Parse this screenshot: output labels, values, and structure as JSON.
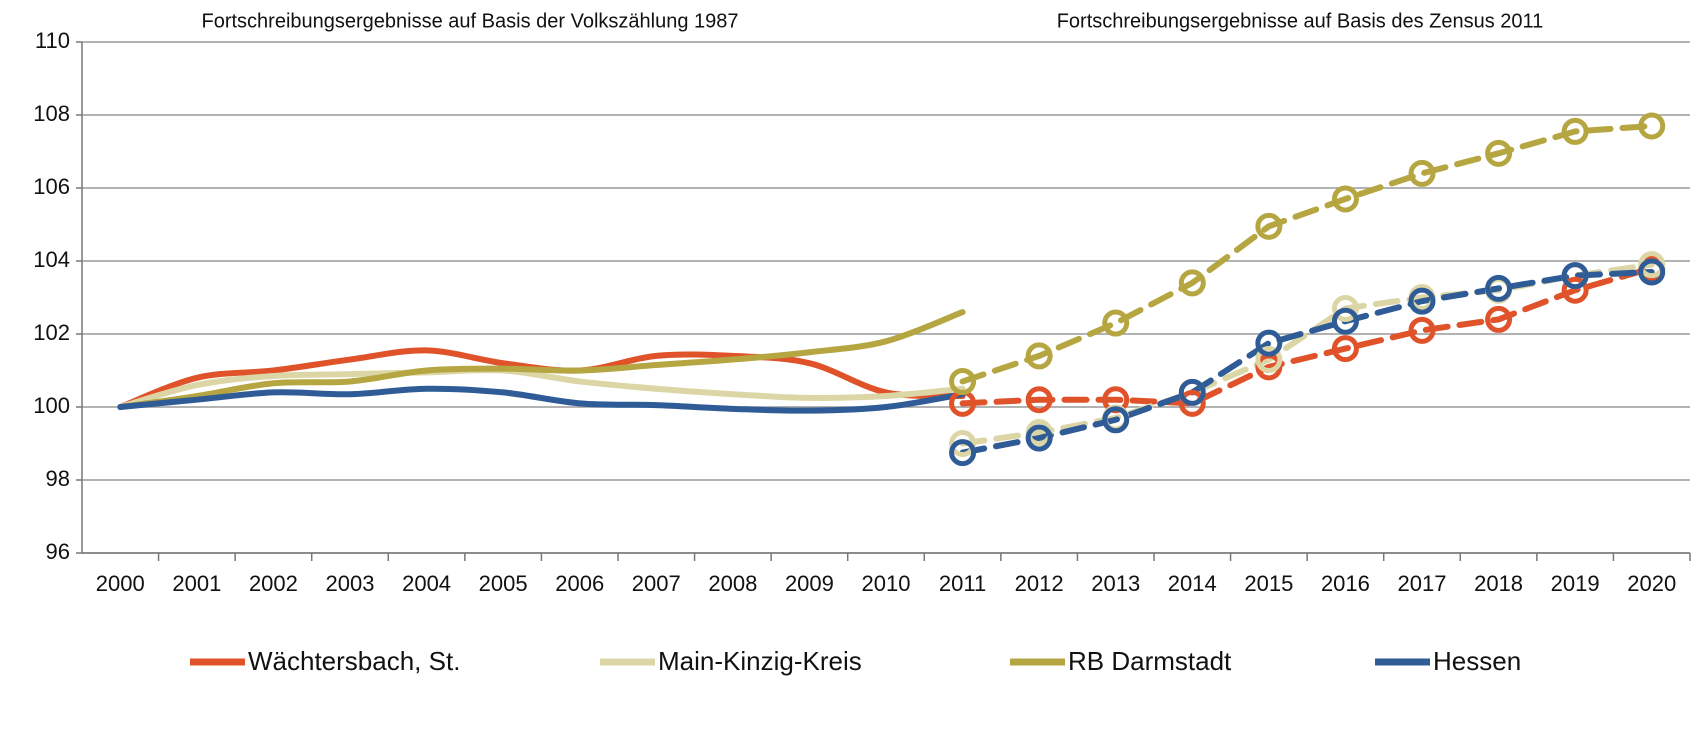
{
  "chart_data": {
    "type": "line",
    "annotations": [
      "Fortschreibungsergebnisse auf Basis der Volkszählung 1987",
      "Fortschreibungsergebnisse auf Basis des Zensus 2011"
    ],
    "categories": [
      "2000",
      "2001",
      "2002",
      "2003",
      "2004",
      "2005",
      "2006",
      "2007",
      "2008",
      "2009",
      "2010",
      "2011",
      "2012",
      "2013",
      "2014",
      "2015",
      "2016",
      "2017",
      "2018",
      "2019",
      "2020"
    ],
    "ylim": [
      96,
      110
    ],
    "yticks": [
      96,
      98,
      100,
      102,
      104,
      106,
      108,
      110
    ],
    "grid": true,
    "series": [
      {
        "name": "Wächtersbach, St.",
        "color": "#e0522a",
        "values": [
          100,
          100.8,
          101.0,
          101.3,
          101.55,
          101.2,
          101.0,
          101.4,
          101.4,
          101.2,
          100.4,
          100.3,
          null,
          null,
          null,
          null,
          null,
          null,
          null,
          null,
          null
        ],
        "zensus_values": [
          null,
          null,
          null,
          null,
          null,
          null,
          null,
          null,
          null,
          null,
          null,
          100.1,
          100.2,
          100.2,
          100.1,
          101.1,
          101.6,
          102.1,
          102.4,
          103.2,
          103.8
        ]
      },
      {
        "name": "Main-Kinzig-Kreis",
        "color": "#dcd6a6",
        "values": [
          100,
          100.6,
          100.85,
          100.9,
          100.95,
          101.0,
          100.7,
          100.5,
          100.35,
          100.25,
          100.3,
          100.5,
          null,
          null,
          null,
          null,
          null,
          null,
          null,
          null,
          null
        ],
        "zensus_values": [
          null,
          null,
          null,
          null,
          null,
          null,
          null,
          null,
          null,
          null,
          null,
          99.0,
          99.3,
          99.7,
          100.4,
          101.3,
          102.7,
          103.0,
          103.2,
          103.6,
          103.9
        ]
      },
      {
        "name": "RB Darmstadt",
        "color": "#b5a642",
        "values": [
          100,
          100.3,
          100.65,
          100.7,
          101.0,
          101.05,
          101.0,
          101.15,
          101.3,
          101.5,
          101.8,
          102.6,
          null,
          null,
          null,
          null,
          null,
          null,
          null,
          null,
          null
        ],
        "zensus_values": [
          null,
          null,
          null,
          null,
          null,
          null,
          null,
          null,
          null,
          null,
          null,
          100.7,
          101.4,
          102.3,
          103.4,
          104.95,
          105.7,
          106.4,
          106.95,
          107.55,
          107.7
        ]
      },
      {
        "name": "Hessen",
        "color": "#2f5c96",
        "values": [
          100,
          100.2,
          100.4,
          100.35,
          100.5,
          100.4,
          100.1,
          100.05,
          99.95,
          99.9,
          100.0,
          100.35,
          null,
          null,
          null,
          null,
          null,
          null,
          null,
          null,
          null
        ],
        "zensus_values": [
          null,
          null,
          null,
          null,
          null,
          null,
          null,
          null,
          null,
          null,
          null,
          98.75,
          99.15,
          99.65,
          100.4,
          101.75,
          102.35,
          102.9,
          103.25,
          103.6,
          103.7
        ]
      }
    ]
  }
}
